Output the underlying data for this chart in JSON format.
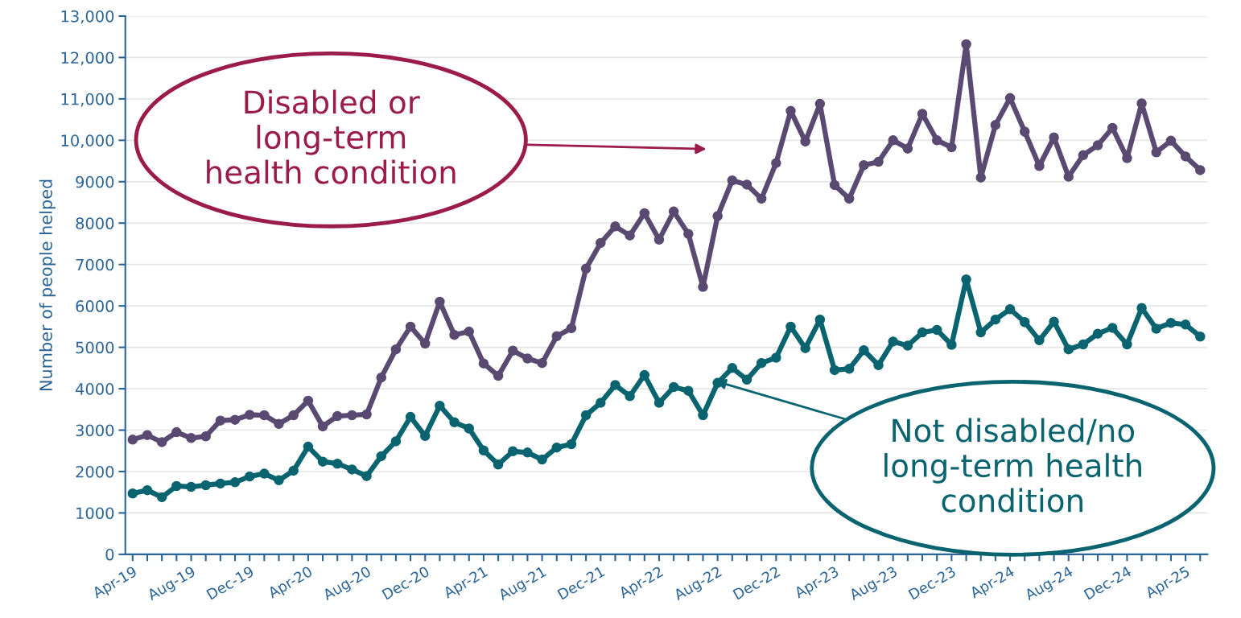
{
  "chart_data": {
    "type": "line",
    "ylabel": "Number of people helped",
    "categories": [
      "Apr-19",
      null,
      null,
      null,
      "Aug-19",
      null,
      null,
      null,
      "Dec-19",
      null,
      null,
      null,
      "Apr-20",
      null,
      null,
      null,
      "Aug-20",
      null,
      null,
      null,
      "Dec-20",
      null,
      null,
      null,
      "Apr-21",
      null,
      null,
      null,
      "Aug-21",
      null,
      null,
      null,
      "Dec-21",
      null,
      null,
      null,
      "Apr-22",
      null,
      null,
      null,
      "Aug-22",
      null,
      null,
      null,
      "Dec-22",
      null,
      null,
      null,
      "Apr-23",
      null,
      null,
      null,
      "Aug-23",
      null,
      null,
      null,
      "Dec-23",
      null,
      null,
      null,
      "Apr-24",
      null,
      null,
      null,
      "Aug-24",
      null,
      null,
      null,
      "Dec-24",
      null,
      null,
      null,
      "Apr-25",
      null
    ],
    "series": [
      {
        "color": "#5a4a72",
        "values": [
          2770,
          2880,
          2710,
          2950,
          2810,
          2850,
          3230,
          3250,
          3370,
          3360,
          3150,
          3360,
          3710,
          3090,
          3340,
          3360,
          3380,
          4270,
          4950,
          5500,
          5090,
          6100,
          5300,
          5380,
          4610,
          4310,
          4920,
          4730,
          4620,
          5270,
          5460,
          6900,
          7520,
          7920,
          7700,
          8240,
          7600,
          8280,
          7740,
          6460,
          8170,
          9030,
          8930,
          8590,
          9450,
          10710,
          9970,
          10880,
          8920,
          8590,
          9400,
          9480,
          10000,
          9800,
          10640,
          10000,
          9830,
          12320,
          9100,
          10370,
          11020,
          10210,
          9380,
          10070,
          9120,
          9640,
          9880,
          10300,
          9570,
          10890,
          9710,
          9990,
          9610,
          9280
        ]
      },
      {
        "color": "#0a6470",
        "values": [
          1470,
          1550,
          1380,
          1650,
          1630,
          1670,
          1710,
          1740,
          1880,
          1950,
          1790,
          2020,
          2600,
          2240,
          2190,
          2050,
          1890,
          2370,
          2730,
          3320,
          2860,
          3590,
          3190,
          3040,
          2510,
          2170,
          2490,
          2460,
          2290,
          2580,
          2660,
          3360,
          3660,
          4090,
          3820,
          4330,
          3660,
          4040,
          3950,
          3360,
          4140,
          4500,
          4220,
          4620,
          4750,
          5500,
          4980,
          5670,
          4450,
          4480,
          4930,
          4570,
          5140,
          5040,
          5360,
          5420,
          5060,
          6640,
          5360,
          5670,
          5920,
          5610,
          5170,
          5620,
          4950,
          5070,
          5330,
          5470,
          5070,
          5950,
          5450,
          5590,
          5550,
          5260
        ]
      }
    ],
    "ylim": [
      0,
      13000
    ],
    "yticks": [
      0,
      1000,
      2000,
      3000,
      4000,
      5000,
      6000,
      7000,
      8000,
      9000,
      {
        "value": 10000,
        "label": "10,000"
      },
      {
        "value": 11000,
        "label": "11,000"
      },
      {
        "value": 12000,
        "label": "12,000"
      },
      {
        "value": 13000,
        "label": "13,000"
      }
    ],
    "grid": "y",
    "marker": "circle",
    "line_style": "solid",
    "annotations": [
      "Disabled or\nlong-term\nhealth condition",
      "Not disabled/no\nlong-term health\ncondition"
    ]
  }
}
